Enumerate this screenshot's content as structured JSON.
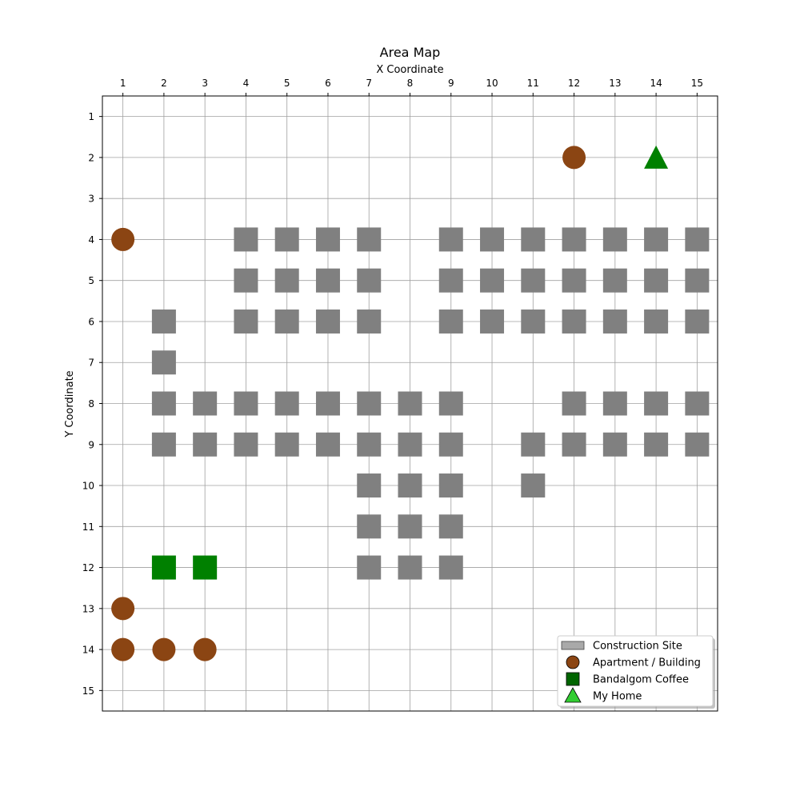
{
  "map": {
    "title": "Area Map",
    "x_axis_label": "X Coordinate",
    "y_axis_label": "Y Coordinate",
    "x_ticks": [
      1,
      2,
      3,
      4,
      5,
      6,
      7,
      8,
      9,
      10,
      11,
      12,
      13,
      14,
      15
    ],
    "y_ticks": [
      1,
      2,
      3,
      4,
      5,
      6,
      7,
      8,
      9,
      10,
      11,
      12,
      13,
      14,
      15
    ],
    "x_range": [
      0.5,
      15.5
    ],
    "y_range": [
      0.5,
      15.5
    ],
    "y_axis_inverted": true,
    "x_axis_position": "top",
    "grid": true,
    "legend_position": "bottom-right",
    "colors": {
      "construction": "#808080",
      "construction_legend": "#a9a9a9",
      "apartment": "#8b4513",
      "coffee": "#008000",
      "coffee_legend": "#006400",
      "home": "#008000",
      "home_legend": "#32cd32"
    },
    "legend": [
      {
        "key": "construction",
        "label": "Construction Site",
        "icon": "square-icon"
      },
      {
        "key": "apartment",
        "label": "Apartment / Building",
        "icon": "circle-icon"
      },
      {
        "key": "coffee",
        "label": "Bandalgom Coffee",
        "icon": "square-icon"
      },
      {
        "key": "home",
        "label": "My Home",
        "icon": "triangle-icon"
      }
    ],
    "construction_sites": [
      [
        4,
        4
      ],
      [
        5,
        4
      ],
      [
        6,
        4
      ],
      [
        7,
        4
      ],
      [
        9,
        4
      ],
      [
        10,
        4
      ],
      [
        11,
        4
      ],
      [
        12,
        4
      ],
      [
        13,
        4
      ],
      [
        14,
        4
      ],
      [
        15,
        4
      ],
      [
        4,
        5
      ],
      [
        5,
        5
      ],
      [
        6,
        5
      ],
      [
        7,
        5
      ],
      [
        9,
        5
      ],
      [
        10,
        5
      ],
      [
        11,
        5
      ],
      [
        12,
        5
      ],
      [
        13,
        5
      ],
      [
        14,
        5
      ],
      [
        15,
        5
      ],
      [
        2,
        6
      ],
      [
        4,
        6
      ],
      [
        5,
        6
      ],
      [
        6,
        6
      ],
      [
        7,
        6
      ],
      [
        9,
        6
      ],
      [
        10,
        6
      ],
      [
        11,
        6
      ],
      [
        12,
        6
      ],
      [
        13,
        6
      ],
      [
        14,
        6
      ],
      [
        15,
        6
      ],
      [
        2,
        7
      ],
      [
        2,
        8
      ],
      [
        3,
        8
      ],
      [
        4,
        8
      ],
      [
        5,
        8
      ],
      [
        6,
        8
      ],
      [
        7,
        8
      ],
      [
        8,
        8
      ],
      [
        9,
        8
      ],
      [
        12,
        8
      ],
      [
        13,
        8
      ],
      [
        14,
        8
      ],
      [
        15,
        8
      ],
      [
        2,
        9
      ],
      [
        3,
        9
      ],
      [
        4,
        9
      ],
      [
        5,
        9
      ],
      [
        6,
        9
      ],
      [
        7,
        9
      ],
      [
        8,
        9
      ],
      [
        9,
        9
      ],
      [
        11,
        9
      ],
      [
        12,
        9
      ],
      [
        13,
        9
      ],
      [
        14,
        9
      ],
      [
        15,
        9
      ],
      [
        7,
        10
      ],
      [
        8,
        10
      ],
      [
        9,
        10
      ],
      [
        11,
        10
      ],
      [
        7,
        11
      ],
      [
        8,
        11
      ],
      [
        9,
        11
      ],
      [
        7,
        12
      ],
      [
        8,
        12
      ],
      [
        9,
        12
      ]
    ],
    "apartments": [
      [
        12,
        2
      ],
      [
        1,
        4
      ],
      [
        1,
        13
      ],
      [
        1,
        14
      ],
      [
        2,
        14
      ],
      [
        3,
        14
      ]
    ],
    "coffee_shops": [
      [
        2,
        12
      ],
      [
        3,
        12
      ]
    ],
    "home": [
      [
        14,
        2
      ]
    ]
  }
}
